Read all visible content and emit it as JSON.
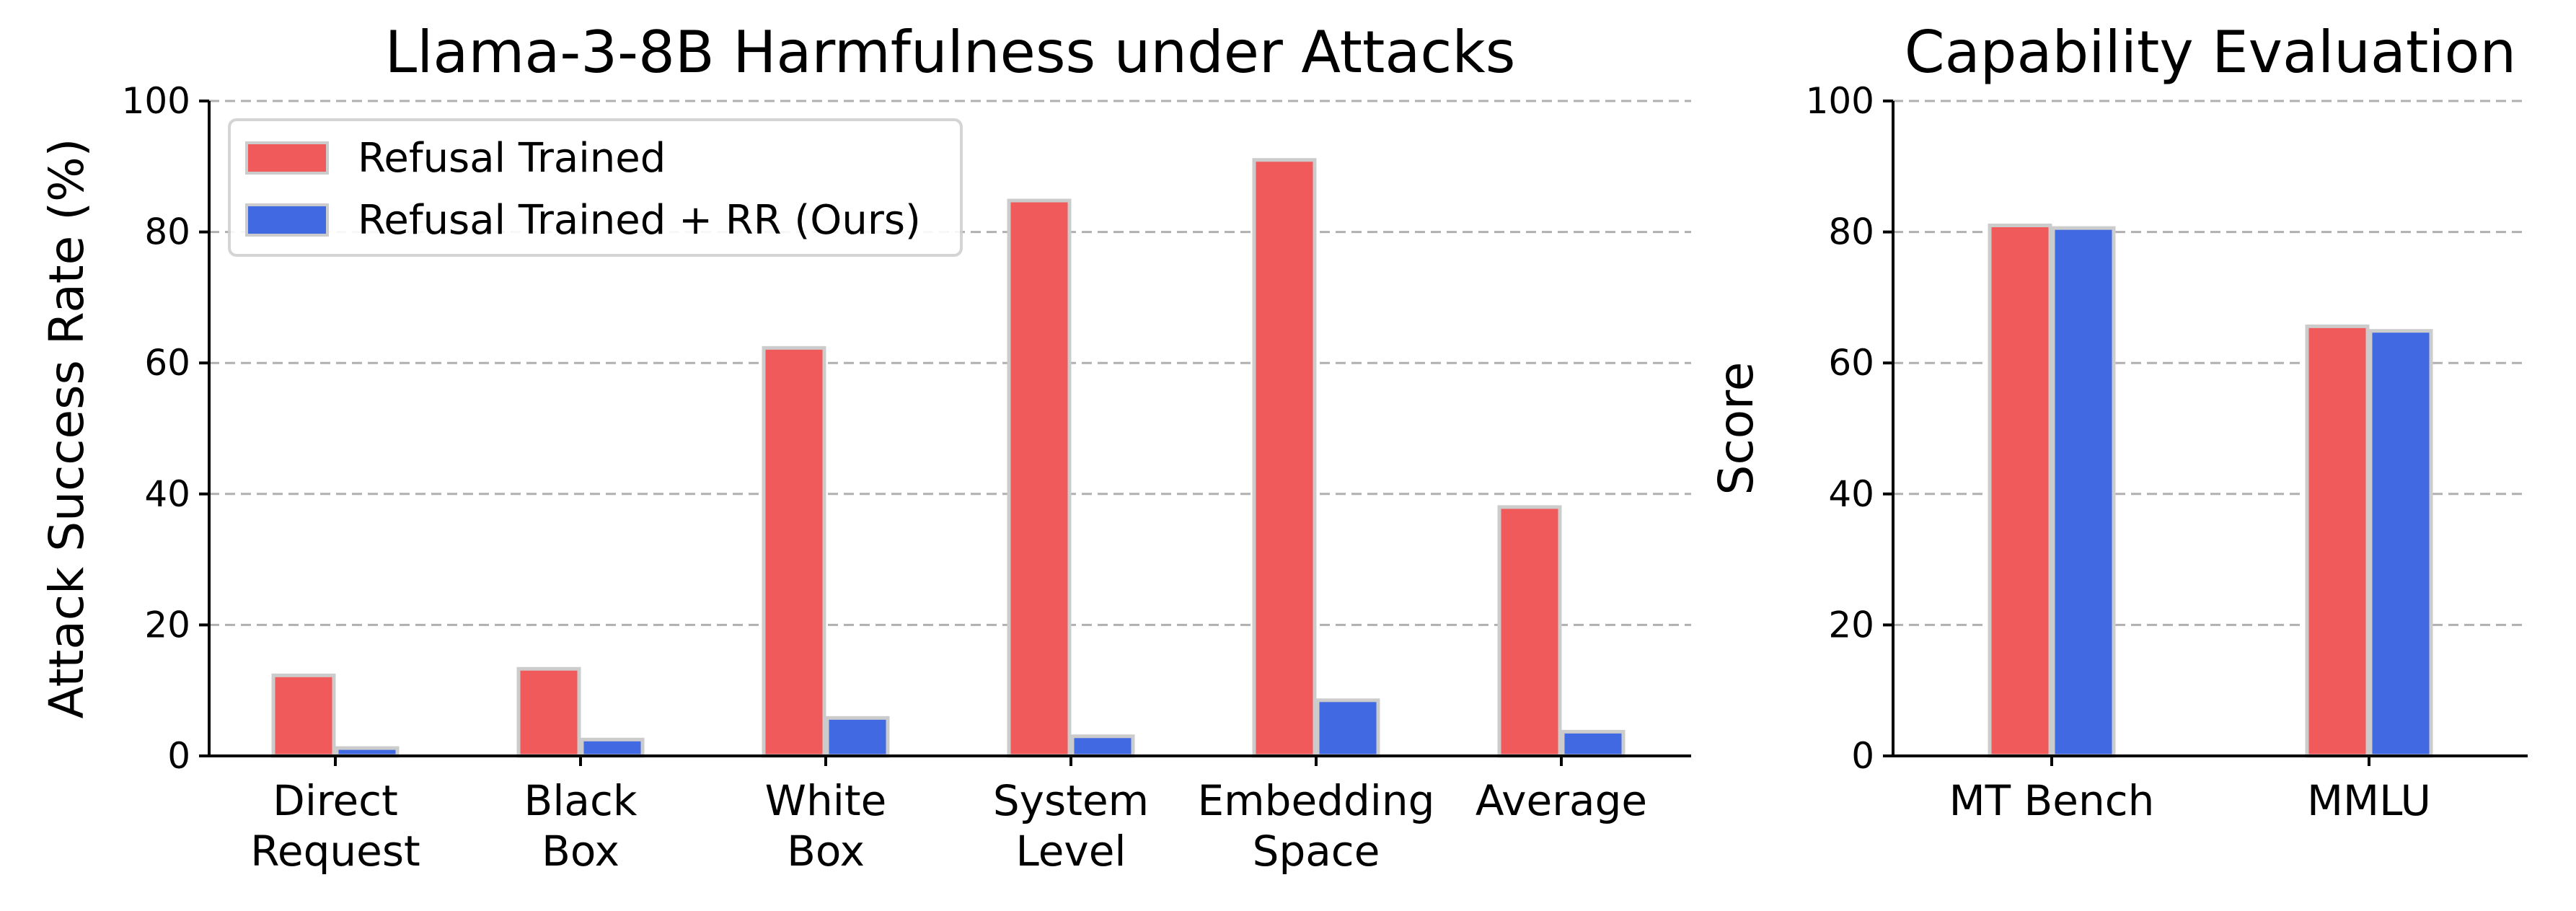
{
  "colors": {
    "series_0": "#f05a5a",
    "series_1": "#4169e1"
  },
  "chart_data": [
    {
      "type": "bar",
      "title": "Llama-3-8B Harmfulness under Attacks",
      "xlabel": "",
      "ylabel": "Attack Success Rate (%)",
      "ylim": [
        0,
        100
      ],
      "yticks": [
        0,
        20,
        40,
        60,
        80,
        100
      ],
      "grid": "y-dashed",
      "legend_position": "top-left",
      "categories": [
        [
          "Direct",
          "Request"
        ],
        [
          "Black",
          "Box"
        ],
        [
          "White",
          "Box"
        ],
        [
          "System",
          "Level"
        ],
        [
          "Embedding",
          "Space"
        ],
        [
          "Average"
        ]
      ],
      "series": [
        {
          "name": "Refusal Trained",
          "values": [
            12.3,
            13.3,
            62.3,
            84.8,
            91.0,
            38.0
          ]
        },
        {
          "name": "Refusal Trained + RR (Ours)",
          "values": [
            1.2,
            2.5,
            5.8,
            3.0,
            8.5,
            3.7
          ]
        }
      ]
    },
    {
      "type": "bar",
      "title": "Capability Evaluation",
      "xlabel": "",
      "ylabel": "Score",
      "ylim": [
        0,
        100
      ],
      "yticks": [
        0,
        20,
        40,
        60,
        80,
        100
      ],
      "grid": "y-dashed",
      "legend_position": "none",
      "categories": [
        [
          "MT Bench"
        ],
        [
          "MMLU"
        ]
      ],
      "series": [
        {
          "name": "Refusal Trained",
          "values": [
            81.0,
            65.6
          ]
        },
        {
          "name": "Refusal Trained + RR (Ours)",
          "values": [
            80.6,
            64.9
          ]
        }
      ]
    }
  ]
}
